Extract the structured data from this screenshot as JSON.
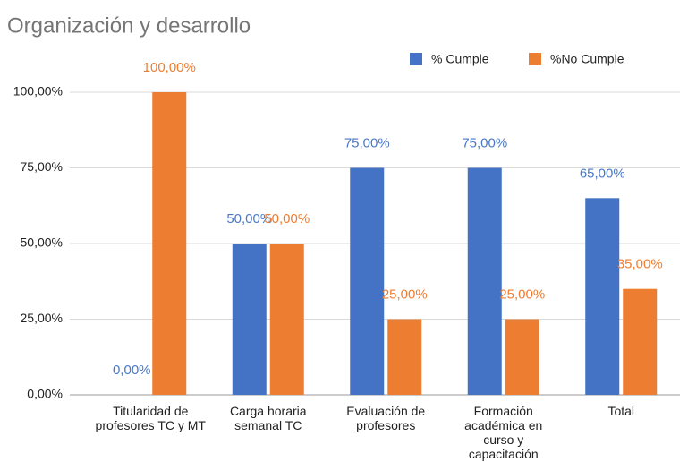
{
  "chart_data": {
    "type": "bar",
    "title": "Organización y desarrollo",
    "categories": [
      "Titularidad de profesores TC y MT",
      "Carga horaria semanal TC",
      "Evaluación de profesores",
      "Formación académica en curso y capacitación",
      "Total"
    ],
    "series": [
      {
        "name": "% Cumple",
        "color": "#4472c4",
        "values": [
          0,
          50,
          75,
          75,
          65
        ],
        "value_labels": [
          "0,00%",
          "50,00%",
          "75,00%",
          "75,00%",
          "65,00%"
        ]
      },
      {
        "name": "%No Cumple",
        "color": "#ed7d31",
        "values": [
          100,
          50,
          25,
          25,
          35
        ],
        "value_labels": [
          "100,00%",
          "50,00%",
          "25,00%",
          "25,00%",
          "35,00%"
        ]
      }
    ],
    "ylim": [
      0,
      100
    ],
    "yticks": [
      {
        "value": 0,
        "label": "0,00%"
      },
      {
        "value": 25,
        "label": "25,00%"
      },
      {
        "value": 50,
        "label": "50,00%"
      },
      {
        "value": 75,
        "label": "75,00%"
      },
      {
        "value": 100,
        "label": "100,00%"
      }
    ],
    "grid": true,
    "legend": "top-right"
  }
}
